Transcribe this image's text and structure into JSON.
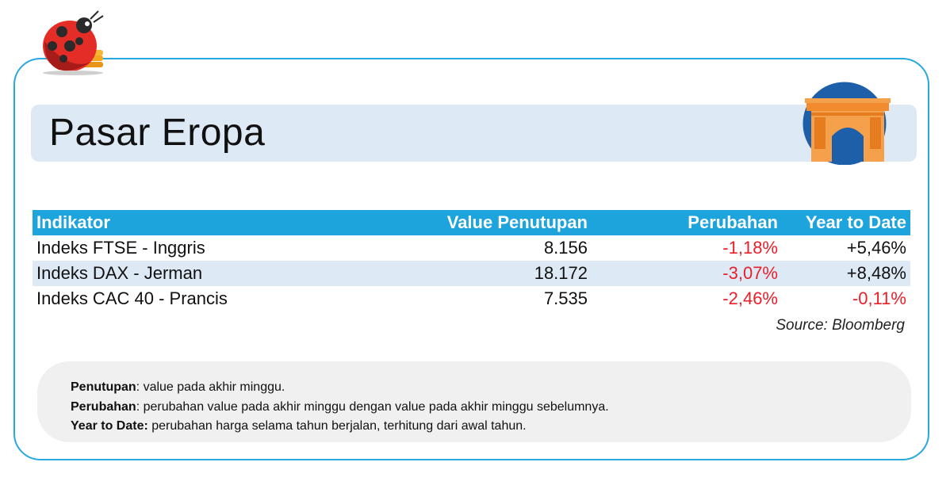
{
  "title": "Pasar Eropa",
  "table": {
    "headers": [
      "Indikator",
      "Value Penutupan",
      "Perubahan",
      "Year to Date"
    ],
    "rows": [
      {
        "indikator": "Indeks FTSE - Inggris",
        "value": "8.156",
        "perubahan": "-1,18%",
        "ytd": "+5,46%"
      },
      {
        "indikator": "Indeks DAX - Jerman",
        "value": "18.172",
        "perubahan": "-3,07%",
        "ytd": "+8,48%"
      },
      {
        "indikator": "Indeks CAC 40 - Prancis",
        "value": "7.535",
        "perubahan": "-2,46%",
        "ytd": "-0,11%"
      }
    ]
  },
  "source": "Source: Bloomberg",
  "notes": [
    {
      "term": "Penutupan",
      "text": ": value pada akhir minggu."
    },
    {
      "term": "Perubahan",
      "text": ": perubahan value pada akhir minggu dengan value pada akhir minggu sebelumnya."
    },
    {
      "term": "Year to Date:",
      "text": " perubahan harga selama tahun berjalan, terhitung dari awal tahun."
    }
  ],
  "colors": {
    "accent": "#1ea4dc",
    "border": "#29a8e0",
    "band": "#dde9f5",
    "negative": "#e8202a"
  },
  "icons": {
    "mascot": "ladybug-mascot-icon",
    "landmark": "arc-de-triomphe-icon"
  }
}
